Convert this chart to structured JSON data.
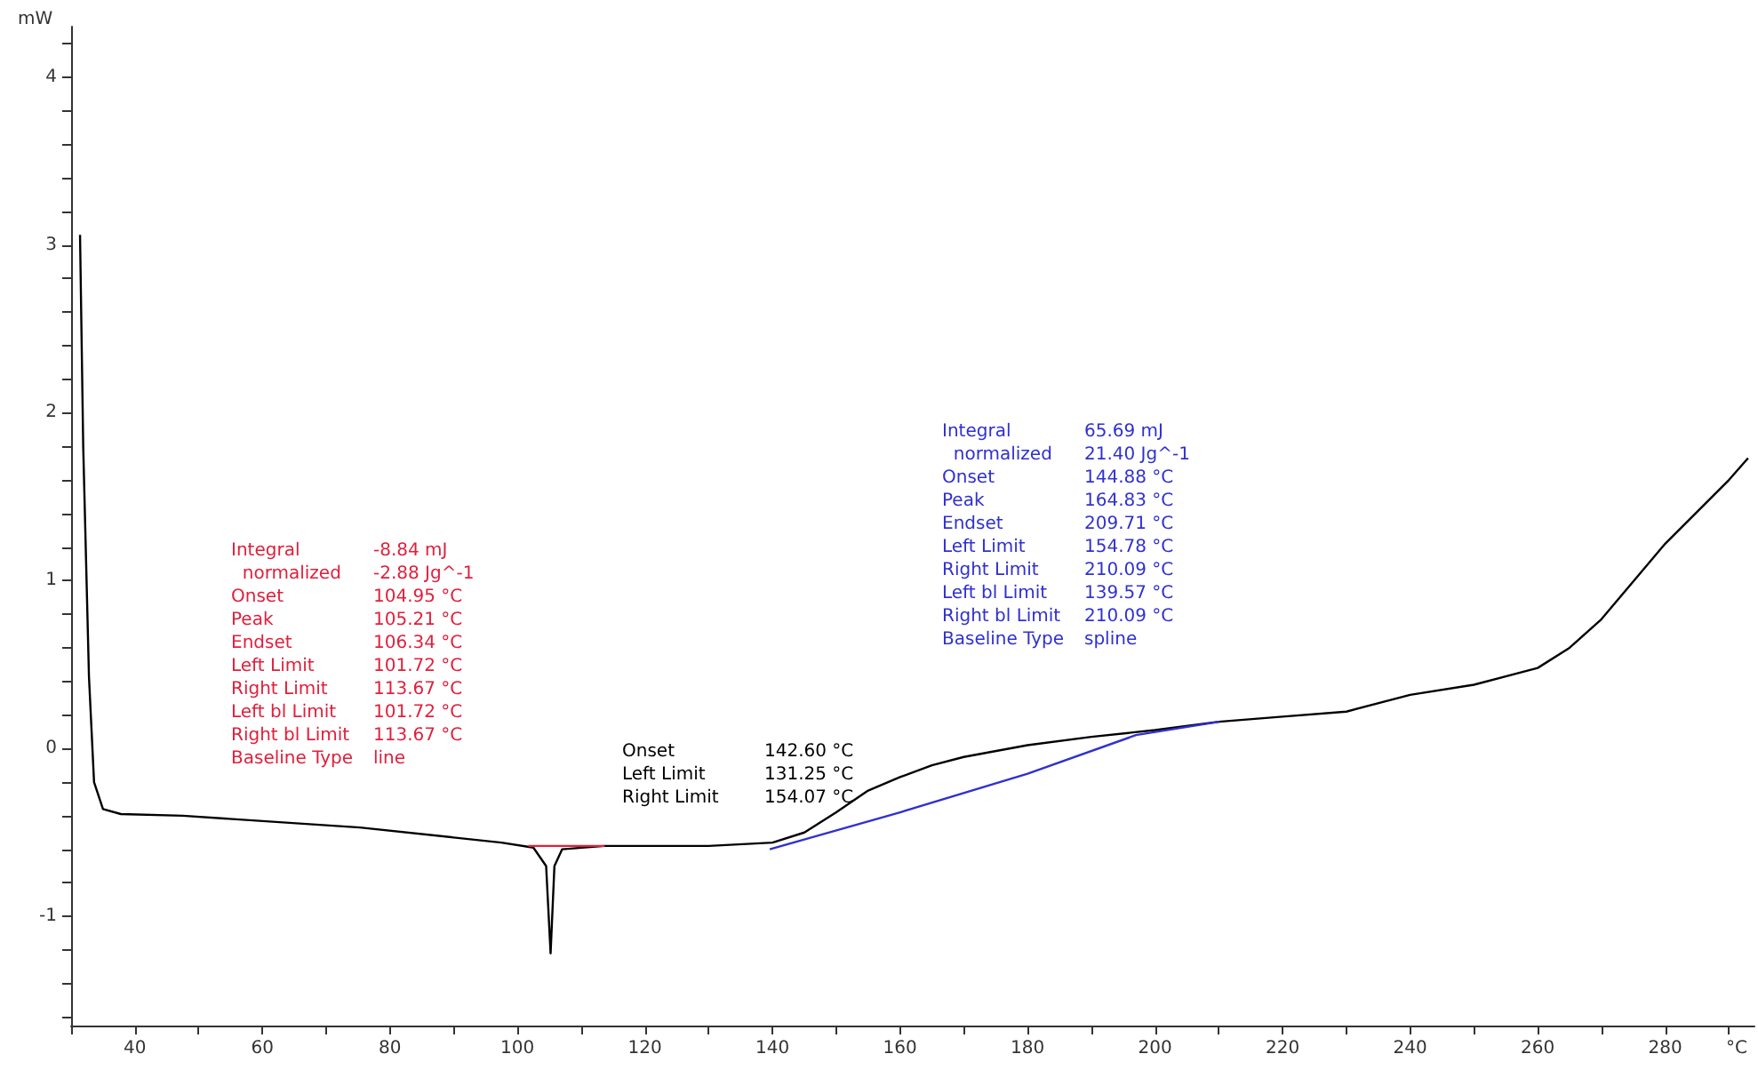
{
  "chart_data": {
    "type": "line",
    "xlabel": "°C",
    "ylabel": "mW",
    "xlim": [
      30,
      294
    ],
    "ylim": [
      -1.65,
      4.3
    ],
    "xticks": [
      40,
      60,
      80,
      100,
      120,
      140,
      160,
      180,
      200,
      220,
      240,
      260,
      280,
      {
        "value": 30,
        "label": null
      },
      {
        "value": 50,
        "label": null
      },
      {
        "value": 70,
        "label": null
      },
      {
        "value": 90,
        "label": null
      },
      {
        "value": 110,
        "label": null
      },
      {
        "value": 130,
        "label": null
      },
      {
        "value": 150,
        "label": null
      },
      {
        "value": 170,
        "label": null
      },
      {
        "value": 190,
        "label": null
      },
      {
        "value": 210,
        "label": null
      },
      {
        "value": 230,
        "label": null
      },
      {
        "value": 250,
        "label": null
      },
      {
        "value": 270,
        "label": null
      },
      {
        "value": 290,
        "label": null
      }
    ],
    "yticks": [
      -1,
      0,
      1,
      2,
      3,
      4,
      {
        "value": -1.6,
        "label": null
      },
      {
        "value": -1.4,
        "label": null
      },
      {
        "value": -1.2,
        "label": null
      },
      {
        "value": -0.8,
        "label": null
      },
      {
        "value": -0.6,
        "label": null
      },
      {
        "value": -0.4,
        "label": null
      },
      {
        "value": -0.2,
        "label": null
      },
      {
        "value": 0.2,
        "label": null
      },
      {
        "value": 0.4,
        "label": null
      },
      {
        "value": 0.6,
        "label": null
      },
      {
        "value": 0.8,
        "label": null
      },
      {
        "value": 1.2,
        "label": null
      },
      {
        "value": 1.4,
        "label": null
      },
      {
        "value": 1.6,
        "label": null
      },
      {
        "value": 1.8,
        "label": null
      },
      {
        "value": 2.2,
        "label": null
      },
      {
        "value": 2.4,
        "label": null
      },
      {
        "value": 2.6,
        "label": null
      },
      {
        "value": 2.8,
        "label": null
      },
      {
        "value": 3.2,
        "label": null
      },
      {
        "value": 3.4,
        "label": null
      },
      {
        "value": 3.6,
        "label": null
      },
      {
        "value": 3.8,
        "label": null
      },
      {
        "value": 4.2,
        "label": null
      }
    ],
    "grid": false,
    "marker": "none",
    "line_style": "solid",
    "series": [
      {
        "color": "#000000",
        "x": [
          31.4,
          31.9,
          32.8,
          33.6,
          35,
          37.8,
          47.5,
          75.3,
          97.5,
          102.5,
          104.5,
          105.2,
          105.8,
          107,
          113.67,
          120,
          130,
          140,
          145,
          150,
          155,
          160,
          165,
          170,
          180,
          190,
          200,
          210,
          220,
          230,
          240,
          250,
          260,
          265,
          270,
          280,
          290,
          293
        ],
        "values": [
          3.06,
          1.8,
          0.43,
          -0.2,
          -0.36,
          -0.39,
          -0.4,
          -0.47,
          -0.56,
          -0.59,
          -0.7,
          -1.22,
          -0.7,
          -0.6,
          -0.58,
          -0.58,
          -0.58,
          -0.56,
          -0.5,
          -0.38,
          -0.25,
          -0.17,
          -0.1,
          -0.05,
          0.02,
          0.07,
          0.11,
          0.16,
          0.19,
          0.22,
          0.32,
          0.38,
          0.48,
          0.6,
          0.77,
          1.22,
          1.6,
          1.73
        ]
      },
      {
        "color": "#e0203c",
        "x": [
          101.72,
          113.67
        ],
        "values": [
          -0.58,
          -0.58
        ]
      },
      {
        "color": "#3030d0",
        "x": [
          139.57,
          160,
          180,
          197,
          210.09
        ],
        "values": [
          -0.6,
          -0.38,
          -0.15,
          0.08,
          0.16
        ]
      }
    ],
    "annotations": [
      "Integral\t-8.84 mJ\n  normalized\t-2.88 Jg^-1\nOnset\t104.95 °C\nPeak\t105.21 °C\nEndset\t106.34 °C\nLeft Limit\t101.72 °C\nRight Limit\t113.67 °C\nLeft bl Limit\t101.72 °C\nRight bl Limit\t113.67 °C\nBaseline Type\tline",
      "Onset\t142.60 °C\nLeft Limit\t131.25 °C\nRight Limit\t154.07 °C",
      "Integral\t65.69 mJ\n  normalized\t21.40 Jg^-1\nOnset\t144.88 °C\nPeak\t164.83 °C\nEndset\t209.71 °C\nLeft Limit\t154.78 °C\nRight Limit\t210.09 °C\nLeft bl Limit\t139.57 °C\nRight bl Limit\t210.09 °C\nBaseline Type\tspline"
    ]
  }
}
